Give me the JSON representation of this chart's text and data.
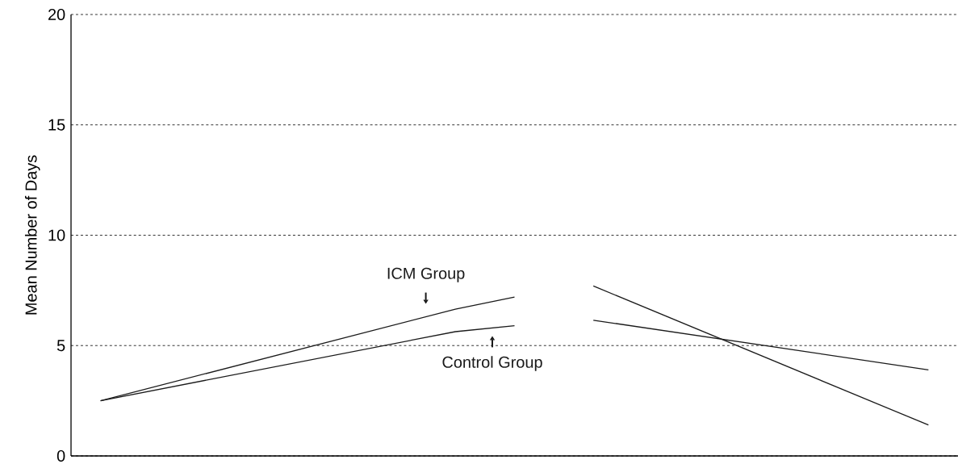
{
  "chart_data": {
    "type": "line",
    "ylabel": "Mean Number of Days",
    "categories": [
      null,
      null,
      null,
      null,
      null,
      null,
      null,
      null,
      null,
      null,
      null,
      null,
      null,
      null,
      null,
      null,
      null,
      null,
      null,
      null,
      null,
      null,
      null,
      null,
      null,
      null,
      null,
      null,
      null,
      null,
      null,
      null,
      null,
      null,
      null,
      null,
      null,
      null,
      null,
      null,
      null,
      null,
      null,
      null,
      null
    ],
    "ylim": [
      0,
      20
    ],
    "yticks": [
      0,
      5,
      10,
      15,
      20
    ],
    "series": [
      {
        "name": "ICM Group",
        "color": "#1a1a1a",
        "values": [
          null,
          2.5,
          null,
          null,
          null,
          null,
          null,
          null,
          null,
          null,
          null,
          null,
          null,
          null,
          null,
          null,
          null,
          null,
          null,
          6.65,
          null,
          null,
          7.2,
          null,
          null,
          null,
          null,
          null,
          null,
          null,
          null,
          null,
          null,
          null,
          null,
          null,
          null,
          null,
          null,
          null,
          null,
          null,
          null,
          null,
          null
        ]
      },
      {
        "color": "#1a1a1a",
        "values": [
          null,
          null,
          null,
          null,
          null,
          null,
          null,
          null,
          null,
          null,
          null,
          null,
          null,
          null,
          null,
          null,
          null,
          null,
          null,
          null,
          null,
          null,
          null,
          null,
          null,
          null,
          7.7,
          null,
          null,
          null,
          null,
          null,
          null,
          null,
          null,
          null,
          null,
          null,
          null,
          null,
          null,
          null,
          null,
          1.4,
          null
        ]
      },
      {
        "name": "Control Group",
        "color": "#1a1a1a",
        "values": [
          null,
          2.5,
          null,
          null,
          null,
          null,
          null,
          null,
          null,
          null,
          null,
          null,
          null,
          null,
          null,
          null,
          null,
          null,
          null,
          5.63,
          null,
          null,
          5.9,
          null,
          null,
          null,
          null,
          null,
          null,
          null,
          null,
          null,
          null,
          null,
          null,
          null,
          null,
          null,
          null,
          null,
          null,
          null,
          null,
          null,
          null
        ]
      },
      {
        "color": "#1a1a1a",
        "values": [
          null,
          null,
          null,
          null,
          null,
          null,
          null,
          null,
          null,
          null,
          null,
          null,
          null,
          null,
          null,
          null,
          null,
          null,
          null,
          null,
          null,
          null,
          null,
          null,
          null,
          null,
          6.15,
          null,
          null,
          null,
          null,
          null,
          null,
          null,
          null,
          null,
          null,
          null,
          null,
          null,
          null,
          null,
          null,
          3.9,
          null
        ]
      }
    ],
    "grid": "y",
    "tick_labels": "y",
    "marker": "none",
    "line_style": "solid"
  }
}
